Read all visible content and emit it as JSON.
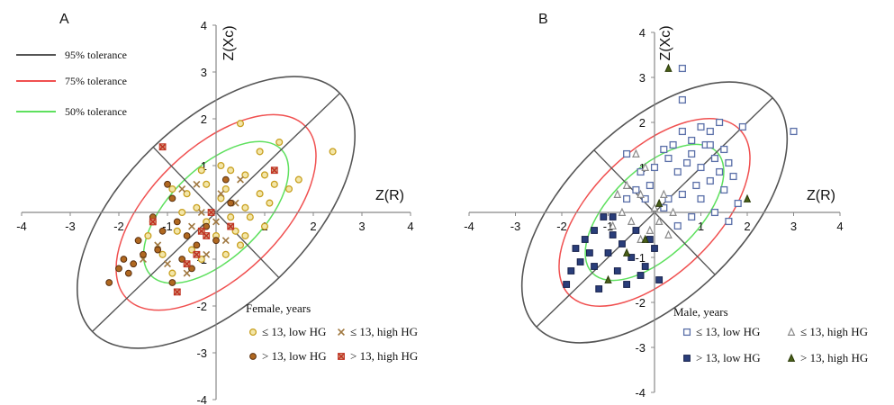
{
  "panels": [
    {
      "letter": "A",
      "xlabel": "Z(R)",
      "ylabel": "Z(Xc)",
      "xticks": [
        -4,
        -3,
        -2,
        -1,
        0,
        1,
        2,
        3,
        4
      ],
      "yticks": [
        -4,
        -3,
        -2,
        -1,
        0,
        1,
        2,
        3,
        4
      ],
      "tolerance_legend": [
        {
          "label": "95% tolerance",
          "color": "#555555"
        },
        {
          "label": "75% tolerance",
          "color": "#f05050"
        },
        {
          "label": "50% tolerance",
          "color": "#5ee05e"
        }
      ],
      "legend_title": "Female, years",
      "legend_entries": [
        {
          "key": "f1",
          "label": "≤ 13, low HG"
        },
        {
          "key": "f2",
          "label": "≤ 13, high HG"
        },
        {
          "key": "f3",
          "label": "> 13, low HG"
        },
        {
          "key": "f4",
          "label": "> 13, high HG"
        }
      ]
    },
    {
      "letter": "B",
      "xlabel": "Z(R)",
      "ylabel": "Z(Xc)",
      "xticks": [
        -4,
        -3,
        -2,
        -1,
        0,
        1,
        2,
        3,
        4
      ],
      "yticks": [
        -4,
        -3,
        -2,
        -1,
        0,
        1,
        2,
        3,
        4
      ],
      "legend_title": "Male, years",
      "legend_entries": [
        {
          "key": "m1",
          "label": "≤ 13, low HG"
        },
        {
          "key": "m2",
          "label": "≤ 13, high HG"
        },
        {
          "key": "m3",
          "label": "> 13, low HG"
        },
        {
          "key": "m4",
          "label": "> 13, high HG"
        }
      ]
    }
  ],
  "chart_data": [
    {
      "type": "scatter",
      "panel": "A",
      "xlabel": "Z(R)",
      "ylabel": "Z(Xc)",
      "xlim": [
        -4,
        4
      ],
      "ylim": [
        -4,
        4
      ],
      "ellipses": [
        {
          "tolerance": "95%",
          "color": "#555555"
        },
        {
          "tolerance": "75%",
          "color": "#f05050"
        },
        {
          "tolerance": "50%",
          "color": "#5ee05e"
        }
      ],
      "series": [
        {
          "key": "f1",
          "name": "≤ 13, low HG",
          "marker": "circle-open",
          "color": "#c8a020",
          "points": [
            [
              0.5,
              1.9
            ],
            [
              2.4,
              1.3
            ],
            [
              1.3,
              1.5
            ],
            [
              0.9,
              1.3
            ],
            [
              0.1,
              1.0
            ],
            [
              0.3,
              0.9
            ],
            [
              -0.3,
              0.9
            ],
            [
              0.6,
              0.8
            ],
            [
              1.0,
              0.8
            ],
            [
              1.7,
              0.7
            ],
            [
              -0.2,
              0.6
            ],
            [
              0.2,
              0.5
            ],
            [
              0.9,
              0.4
            ],
            [
              1.1,
              0.2
            ],
            [
              1.2,
              0.6
            ],
            [
              1.5,
              0.5
            ],
            [
              -0.6,
              0.4
            ],
            [
              -0.9,
              0.5
            ],
            [
              0.6,
              0.1
            ],
            [
              -0.4,
              0.1
            ],
            [
              0.7,
              -0.1
            ],
            [
              -1.3,
              -0.2
            ],
            [
              -0.8,
              -0.4
            ],
            [
              1.0,
              -0.3
            ],
            [
              0.4,
              -0.4
            ],
            [
              0.0,
              -0.5
            ],
            [
              -0.5,
              -0.8
            ],
            [
              -1.1,
              -0.9
            ],
            [
              -0.3,
              -1.0
            ],
            [
              0.2,
              -0.9
            ],
            [
              0.5,
              -0.7
            ],
            [
              -0.2,
              -0.2
            ],
            [
              0.1,
              0.3
            ],
            [
              -0.7,
              0.0
            ],
            [
              0.3,
              -0.1
            ],
            [
              -1.4,
              -0.5
            ],
            [
              -0.9,
              -1.3
            ],
            [
              0.6,
              -0.5
            ]
          ]
        },
        {
          "key": "f2",
          "name": "≤ 13, high HG",
          "marker": "x",
          "color": "#a07840",
          "points": [
            [
              -0.4,
              0.6
            ],
            [
              -0.7,
              0.5
            ],
            [
              -0.3,
              0.0
            ],
            [
              0.0,
              -0.2
            ],
            [
              0.1,
              0.4
            ],
            [
              -0.5,
              -0.3
            ],
            [
              -1.2,
              -0.7
            ],
            [
              -1.0,
              -1.1
            ],
            [
              -0.6,
              -1.3
            ],
            [
              -0.8,
              -1.7
            ],
            [
              0.5,
              0.7
            ],
            [
              0.2,
              -0.6
            ],
            [
              -0.2,
              -0.9
            ],
            [
              0.4,
              0.2
            ],
            [
              -1.5,
              -1.0
            ]
          ]
        },
        {
          "key": "f3",
          "name": "> 13, low HG",
          "marker": "circle-filled",
          "color": "#b06820",
          "points": [
            [
              -1.0,
              0.6
            ],
            [
              -0.9,
              0.3
            ],
            [
              -1.3,
              -0.1
            ],
            [
              -0.6,
              -0.5
            ],
            [
              -1.2,
              -0.8
            ],
            [
              -1.5,
              -0.9
            ],
            [
              -1.9,
              -1.0
            ],
            [
              -2.2,
              -1.5
            ],
            [
              -1.8,
              -1.3
            ],
            [
              -0.9,
              -1.5
            ],
            [
              -0.5,
              -1.2
            ],
            [
              0.0,
              -0.6
            ],
            [
              -0.2,
              -0.3
            ],
            [
              0.2,
              0.7
            ],
            [
              -0.8,
              -0.2
            ],
            [
              -1.6,
              -0.6
            ],
            [
              -2.0,
              -1.2
            ],
            [
              -1.1,
              -0.4
            ],
            [
              -0.4,
              -0.7
            ],
            [
              -0.7,
              -1.0
            ],
            [
              0.3,
              0.2
            ],
            [
              -1.7,
              -1.1
            ]
          ]
        },
        {
          "key": "f4",
          "name": "> 13, high HG",
          "marker": "square-x",
          "color": "#c03020",
          "points": [
            [
              -1.1,
              1.4
            ],
            [
              1.2,
              0.9
            ],
            [
              -1.3,
              -0.2
            ],
            [
              -0.2,
              -0.5
            ],
            [
              -0.4,
              -0.9
            ],
            [
              -0.8,
              -1.7
            ],
            [
              -0.1,
              0.0
            ],
            [
              0.3,
              -0.3
            ],
            [
              -0.6,
              -1.1
            ],
            [
              -0.3,
              -0.4
            ]
          ]
        }
      ]
    },
    {
      "type": "scatter",
      "panel": "B",
      "xlabel": "Z(R)",
      "ylabel": "Z(Xc)",
      "xlim": [
        -4,
        4
      ],
      "ylim": [
        -4,
        4
      ],
      "ellipses": [
        {
          "tolerance": "95%",
          "color": "#555555"
        },
        {
          "tolerance": "75%",
          "color": "#f05050"
        },
        {
          "tolerance": "50%",
          "color": "#5ee05e"
        }
      ],
      "series": [
        {
          "key": "m1",
          "name": "≤ 13, low HG",
          "marker": "square-open",
          "color": "#5a6fa8",
          "points": [
            [
              0.6,
              3.2
            ],
            [
              1.4,
              2.0
            ],
            [
              0.6,
              2.5
            ],
            [
              1.0,
              1.9
            ],
            [
              1.2,
              1.8
            ],
            [
              1.9,
              1.9
            ],
            [
              3.0,
              1.8
            ],
            [
              0.6,
              1.8
            ],
            [
              0.8,
              1.6
            ],
            [
              1.1,
              1.5
            ],
            [
              0.4,
              1.5
            ],
            [
              0.2,
              1.4
            ],
            [
              0.8,
              1.3
            ],
            [
              1.3,
              1.2
            ],
            [
              1.6,
              1.1
            ],
            [
              0.7,
              1.1
            ],
            [
              1.0,
              1.0
            ],
            [
              1.4,
              0.9
            ],
            [
              1.7,
              0.8
            ],
            [
              0.5,
              0.9
            ],
            [
              0.3,
              1.2
            ],
            [
              0.0,
              1.0
            ],
            [
              -0.3,
              0.9
            ],
            [
              1.2,
              0.7
            ],
            [
              0.9,
              0.6
            ],
            [
              1.5,
              0.5
            ],
            [
              0.6,
              0.4
            ],
            [
              0.3,
              0.3
            ],
            [
              1.0,
              0.3
            ],
            [
              1.3,
              0.0
            ],
            [
              0.2,
              0.1
            ],
            [
              0.8,
              -0.1
            ],
            [
              0.5,
              -0.3
            ],
            [
              -0.4,
              0.5
            ],
            [
              -0.6,
              0.3
            ],
            [
              -0.1,
              0.6
            ],
            [
              -0.2,
              0.3
            ],
            [
              1.6,
              -0.2
            ],
            [
              -0.6,
              1.3
            ],
            [
              1.8,
              0.2
            ],
            [
              1.2,
              1.5
            ],
            [
              1.5,
              1.4
            ]
          ]
        },
        {
          "key": "m2",
          "name": "≤ 13, high HG",
          "marker": "triangle-open",
          "color": "#8a8a8a",
          "points": [
            [
              -0.4,
              1.3
            ],
            [
              -0.2,
              1.0
            ],
            [
              -0.6,
              0.6
            ],
            [
              -0.3,
              0.4
            ],
            [
              0.0,
              0.1
            ],
            [
              0.2,
              0.4
            ],
            [
              -0.5,
              -0.2
            ],
            [
              -0.1,
              -0.4
            ],
            [
              -0.3,
              -0.6
            ],
            [
              0.1,
              -0.2
            ],
            [
              -0.7,
              0.0
            ],
            [
              -0.8,
              0.4
            ],
            [
              0.4,
              0.0
            ],
            [
              -0.9,
              -0.3
            ],
            [
              0.3,
              -0.5
            ]
          ]
        },
        {
          "key": "m3",
          "name": "> 13, low HG",
          "marker": "square-filled",
          "color": "#2a3e7a",
          "points": [
            [
              -1.1,
              -0.1
            ],
            [
              -1.3,
              -0.4
            ],
            [
              -1.5,
              -0.6
            ],
            [
              -0.9,
              -0.5
            ],
            [
              -1.0,
              -0.9
            ],
            [
              -1.3,
              -1.2
            ],
            [
              -1.6,
              -1.1
            ],
            [
              -1.8,
              -1.3
            ],
            [
              -1.9,
              -1.6
            ],
            [
              -1.4,
              -0.9
            ],
            [
              -0.7,
              -0.7
            ],
            [
              -0.5,
              -1.0
            ],
            [
              -0.2,
              -1.2
            ],
            [
              0.0,
              -0.8
            ],
            [
              0.1,
              -1.5
            ],
            [
              -0.8,
              -1.3
            ],
            [
              -1.7,
              -0.8
            ],
            [
              -0.9,
              -0.1
            ],
            [
              -0.4,
              -0.4
            ],
            [
              -0.1,
              -0.6
            ],
            [
              -0.6,
              -1.6
            ],
            [
              -1.2,
              -1.7
            ],
            [
              -0.3,
              -1.4
            ]
          ]
        },
        {
          "key": "m4",
          "name": "> 13, high HG",
          "marker": "triangle-filled",
          "color": "#4a6018",
          "points": [
            [
              0.3,
              3.2
            ],
            [
              2.0,
              0.3
            ],
            [
              -0.2,
              -0.6
            ],
            [
              -0.6,
              -0.9
            ],
            [
              -1.0,
              -1.5
            ],
            [
              0.1,
              0.2
            ]
          ]
        }
      ]
    }
  ]
}
